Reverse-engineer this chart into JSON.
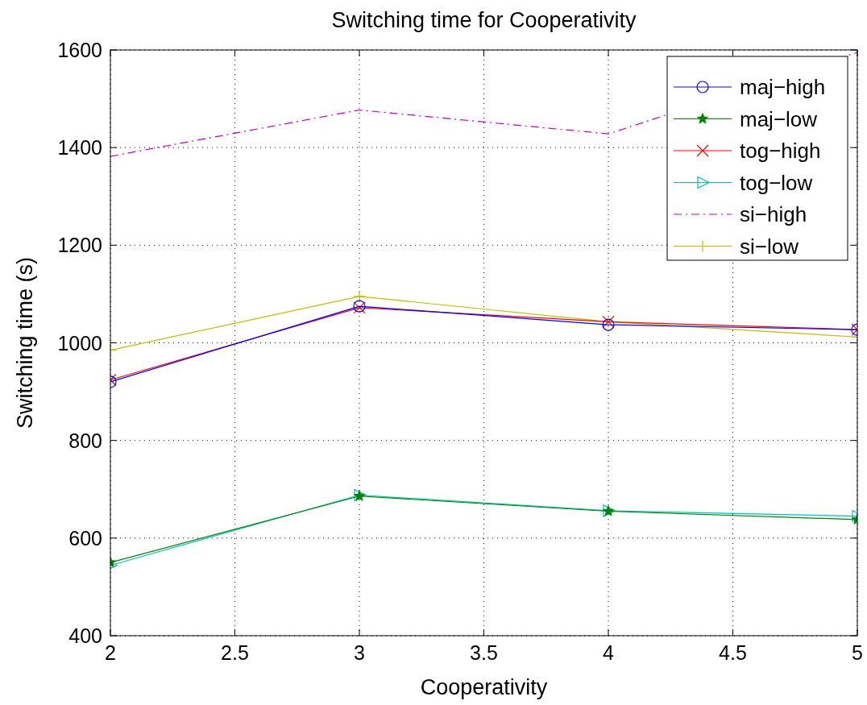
{
  "chart_data": {
    "type": "line",
    "title": "Switching time for Cooperativity",
    "xlabel": "Cooperativity",
    "ylabel": "Switching time (s)",
    "x": [
      2,
      3,
      4,
      5
    ],
    "xlim": [
      2,
      5
    ],
    "xticks": [
      2,
      2.5,
      3,
      3.5,
      4,
      4.5,
      5
    ],
    "ylim": [
      400,
      1600
    ],
    "yticks": [
      400,
      600,
      800,
      1000,
      1200,
      1400,
      1600
    ],
    "grid": true,
    "legend": "top right",
    "series": [
      {
        "name": "maj−high",
        "color": "#0000ff",
        "marker": "circle",
        "values": [
          920,
          1075,
          1037,
          1027
        ]
      },
      {
        "name": "maj−low",
        "color": "#008000",
        "marker": "star",
        "values": [
          550,
          686,
          655,
          638
        ]
      },
      {
        "name": "tog−high",
        "color": "#ff0000",
        "marker": "cross",
        "values": [
          924,
          1072,
          1043,
          1027
        ]
      },
      {
        "name": "tog−low",
        "color": "#00bfbf",
        "marker": "triangle",
        "values": [
          544,
          688,
          656,
          645
        ]
      },
      {
        "name": "si−high",
        "color": "#bf00bf",
        "marker": "none",
        "line_style": "dashed",
        "values": [
          1382,
          1477,
          1428,
          1595
        ]
      },
      {
        "name": "si−low",
        "color": "#bfbf00",
        "marker": "plus",
        "values": [
          985,
          1095,
          1043,
          1012
        ]
      }
    ]
  }
}
